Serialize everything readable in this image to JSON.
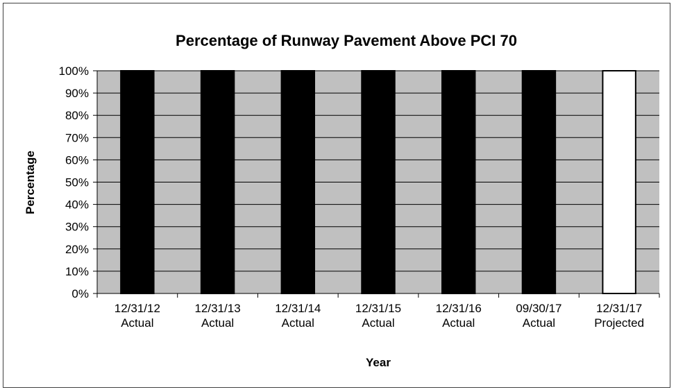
{
  "chart_data": {
    "type": "bar",
    "title": "Percentage of Runway Pavement Above PCI 70",
    "xlabel": "Year",
    "ylabel": "Percentage",
    "ylim": [
      0,
      100
    ],
    "y_ticks": [
      "0%",
      "10%",
      "20%",
      "30%",
      "40%",
      "50%",
      "60%",
      "70%",
      "80%",
      "90%",
      "100%"
    ],
    "categories": [
      [
        "12/31/12",
        "Actual"
      ],
      [
        "12/31/13",
        "Actual"
      ],
      [
        "12/31/14",
        "Actual"
      ],
      [
        "12/31/15",
        "Actual"
      ],
      [
        "12/31/16",
        "Actual"
      ],
      [
        "09/30/17",
        "Actual"
      ],
      [
        "12/31/17",
        "Projected"
      ]
    ],
    "values": [
      100,
      100,
      100,
      100,
      100,
      100,
      100
    ],
    "bar_colors": [
      "#000000",
      "#000000",
      "#000000",
      "#000000",
      "#000000",
      "#000000",
      "#ffffff"
    ],
    "plot_background": "#c0c0c0",
    "grid": true,
    "legend": false
  }
}
